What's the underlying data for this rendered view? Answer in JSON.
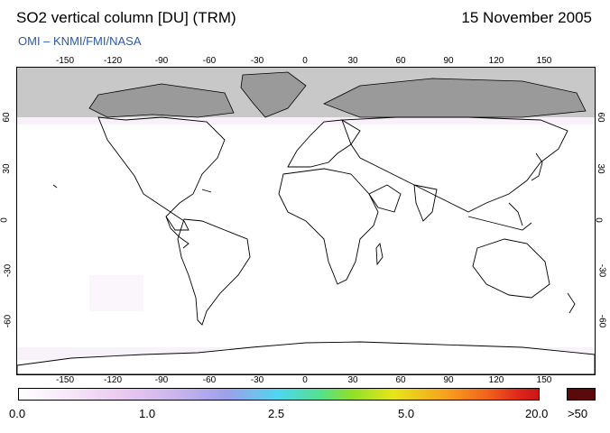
{
  "header": {
    "title": "SO2 vertical column [DU] (TRM)",
    "date": "15 November 2005",
    "credit": "OMI  –  KNMI/FMI/NASA"
  },
  "map": {
    "longitude_ticks": [
      "-150",
      "-120",
      "-90",
      "-60",
      "-30",
      "0",
      "30",
      "60",
      "90",
      "120",
      "150"
    ],
    "latitude_ticks_left": [
      "60",
      "30",
      "0",
      "-30",
      "-60"
    ],
    "latitude_ticks_right": [
      "60",
      "30",
      "0",
      "-30",
      "-60"
    ],
    "colors": {
      "no_data": "#c8c8c8",
      "coast": "#000000"
    }
  },
  "colorbar": {
    "labels": [
      "0.0",
      "1.0",
      "2.5",
      "5.0",
      "20.0"
    ],
    "over_label": ">50",
    "over_color": "#5a0a0a"
  }
}
